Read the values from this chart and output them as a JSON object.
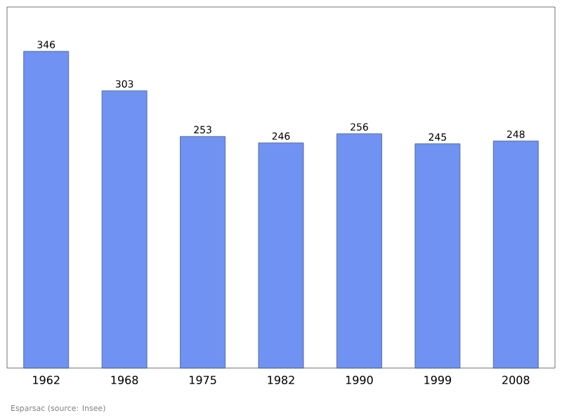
{
  "chart_data": {
    "type": "bar",
    "categories": [
      "1962",
      "1968",
      "1975",
      "1982",
      "1990",
      "1999",
      "2008"
    ],
    "values": [
      346,
      303,
      253,
      246,
      256,
      245,
      248
    ],
    "color": "#7092f2",
    "data_labels": true,
    "annotations": [
      "Esparsac    (source: Insee)"
    ]
  }
}
